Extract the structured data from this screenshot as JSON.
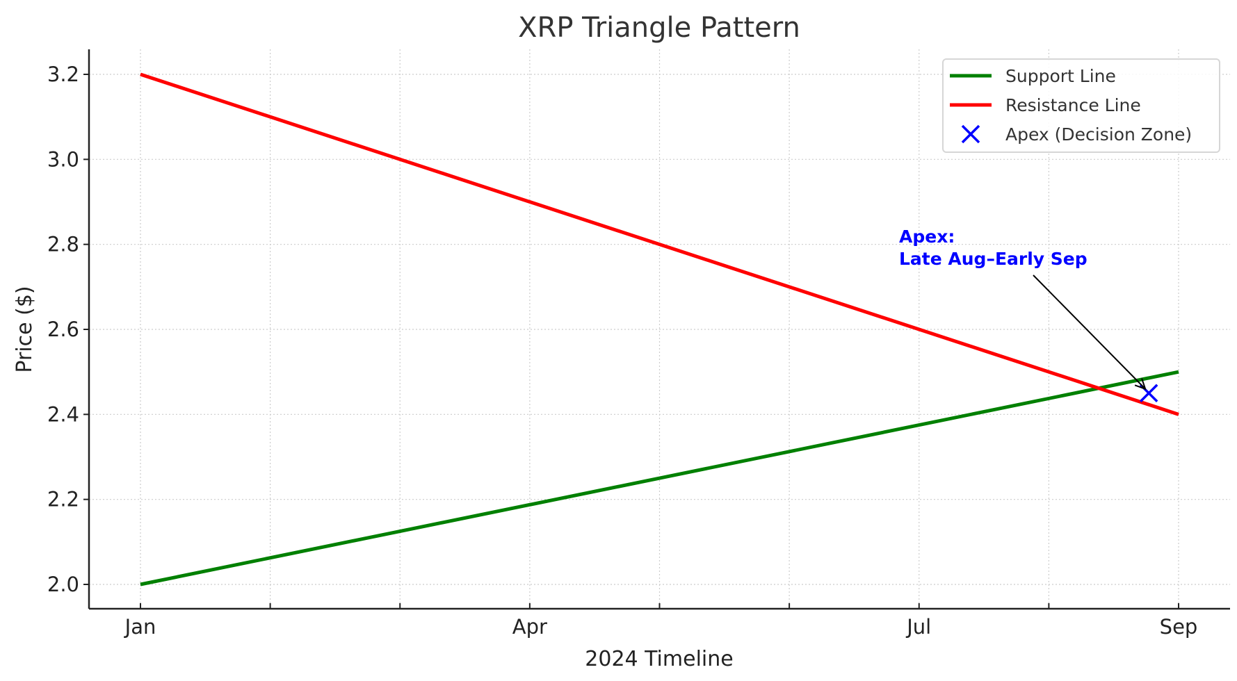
{
  "chart_data": {
    "type": "line",
    "title": "XRP Triangle Pattern",
    "xlabel": "2024 Timeline",
    "ylabel": "Price ($)",
    "x_ticks": [
      "Jan",
      "",
      "",
      "Apr",
      "",
      "",
      "Jul",
      "",
      "Sep"
    ],
    "x_tick_labels": [
      "Jan",
      "Apr",
      "Jul",
      "Sep"
    ],
    "x": [
      "2024-01-01",
      "2024-09-01"
    ],
    "ylim": [
      1.94,
      3.26
    ],
    "y_ticks": [
      2.0,
      2.2,
      2.4,
      2.6,
      2.8,
      3.0,
      3.2
    ],
    "y_tick_labels": [
      "2.0",
      "2.2",
      "2.4",
      "2.6",
      "2.8",
      "3.0",
      "3.2"
    ],
    "grid": true,
    "legend_position": "upper right",
    "series": [
      {
        "name": "Support Line",
        "color": "#008000",
        "x": [
          "2024-01-01",
          "2024-09-01"
        ],
        "values": [
          2.0,
          2.5
        ]
      },
      {
        "name": "Resistance Line",
        "color": "#ff0000",
        "x": [
          "2024-01-01",
          "2024-09-01"
        ],
        "values": [
          3.2,
          2.4
        ]
      },
      {
        "name": "Apex (Decision Zone)",
        "color": "#0000ff",
        "marker": "x",
        "x": [
          "2024-08-25"
        ],
        "values": [
          2.45
        ]
      }
    ],
    "annotations": [
      {
        "text_line1": "Apex:",
        "text_line2": "Late Aug–Early Sep",
        "color": "#0000ff",
        "points_to": {
          "x": "2024-08-25",
          "y": 2.45
        }
      }
    ]
  }
}
